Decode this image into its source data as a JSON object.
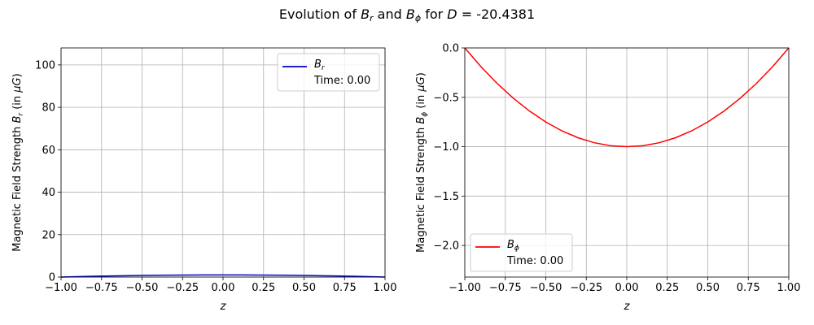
{
  "figure": {
    "title_prefix": "Evolution of ",
    "title_sym1_base": "B",
    "title_sym1_sub": "r",
    "title_mid": " and ",
    "title_sym2_base": "B",
    "title_sym2_sub": "ϕ",
    "title_for": " for ",
    "title_var": "D",
    "title_eq": " = ",
    "title_value": "-20.4381"
  },
  "chart_data": [
    {
      "type": "line",
      "xlabel": "z",
      "ylabel_text": "Magnetic Field Strength ",
      "ylabel_sym_base": "B",
      "ylabel_sym_sub": "r",
      "ylabel_unit_pre": " (in ",
      "ylabel_unit_mu": "μG",
      "ylabel_unit_post": ")",
      "xlim": [
        -1.0,
        1.0
      ],
      "ylim": [
        0,
        108
      ],
      "xticks": [
        "−1.00",
        "−0.75",
        "−0.50",
        "−0.25",
        "0.00",
        "0.25",
        "0.50",
        "0.75",
        "1.00"
      ],
      "xtick_values": [
        -1.0,
        -0.75,
        -0.5,
        -0.25,
        0.0,
        0.25,
        0.5,
        0.75,
        1.0
      ],
      "yticks": [
        "0",
        "20",
        "40",
        "60",
        "80",
        "100"
      ],
      "ytick_values": [
        0,
        20,
        40,
        60,
        80,
        100
      ],
      "grid": true,
      "legend_placement": "top-right",
      "series": [
        {
          "name_base": "B",
          "name_sub": "r",
          "color": "#0000cc",
          "time_label": "Time: 0.00",
          "x": [
            -1.0,
            -0.9,
            -0.8,
            -0.7,
            -0.6,
            -0.5,
            -0.4,
            -0.3,
            -0.2,
            -0.1,
            0.0,
            0.1,
            0.2,
            0.3,
            0.4,
            0.5,
            0.6,
            0.7,
            0.8,
            0.9,
            1.0
          ],
          "y": [
            0.0,
            0.19,
            0.36,
            0.51,
            0.64,
            0.75,
            0.84,
            0.91,
            0.96,
            0.99,
            1.0,
            0.99,
            0.96,
            0.91,
            0.84,
            0.75,
            0.64,
            0.51,
            0.36,
            0.19,
            0.0
          ]
        }
      ]
    },
    {
      "type": "line",
      "xlabel": "z",
      "ylabel_text": "Magnetic Field Strength ",
      "ylabel_sym_base": "B",
      "ylabel_sym_sub": "ϕ",
      "ylabel_unit_pre": " (in ",
      "ylabel_unit_mu": "μG",
      "ylabel_unit_post": ")",
      "xlim": [
        -1.0,
        1.0
      ],
      "ylim": [
        -2.32,
        0.0
      ],
      "xticks": [
        "−1.00",
        "−0.75",
        "−0.50",
        "−0.25",
        "0.00",
        "0.25",
        "0.50",
        "0.75",
        "1.00"
      ],
      "xtick_values": [
        -1.0,
        -0.75,
        -0.5,
        -0.25,
        0.0,
        0.25,
        0.5,
        0.75,
        1.0
      ],
      "yticks": [
        "−2.0",
        "−1.5",
        "−1.0",
        "−0.5",
        "0.0"
      ],
      "ytick_values": [
        -2.0,
        -1.5,
        -1.0,
        -0.5,
        0.0
      ],
      "grid": true,
      "legend_placement": "bottom-left",
      "series": [
        {
          "name_base": "B",
          "name_sub": "ϕ",
          "color": "#ff0000",
          "time_label": "Time: 0.00",
          "x": [
            -1.0,
            -0.9,
            -0.8,
            -0.7,
            -0.6,
            -0.5,
            -0.4,
            -0.3,
            -0.2,
            -0.1,
            0.0,
            0.1,
            0.2,
            0.3,
            0.4,
            0.5,
            0.6,
            0.7,
            0.8,
            0.9,
            1.0
          ],
          "y": [
            0.0,
            -0.19,
            -0.36,
            -0.51,
            -0.64,
            -0.75,
            -0.84,
            -0.91,
            -0.96,
            -0.99,
            -1.0,
            -0.99,
            -0.96,
            -0.91,
            -0.84,
            -0.75,
            -0.64,
            -0.51,
            -0.36,
            -0.19,
            0.0
          ]
        }
      ]
    }
  ]
}
